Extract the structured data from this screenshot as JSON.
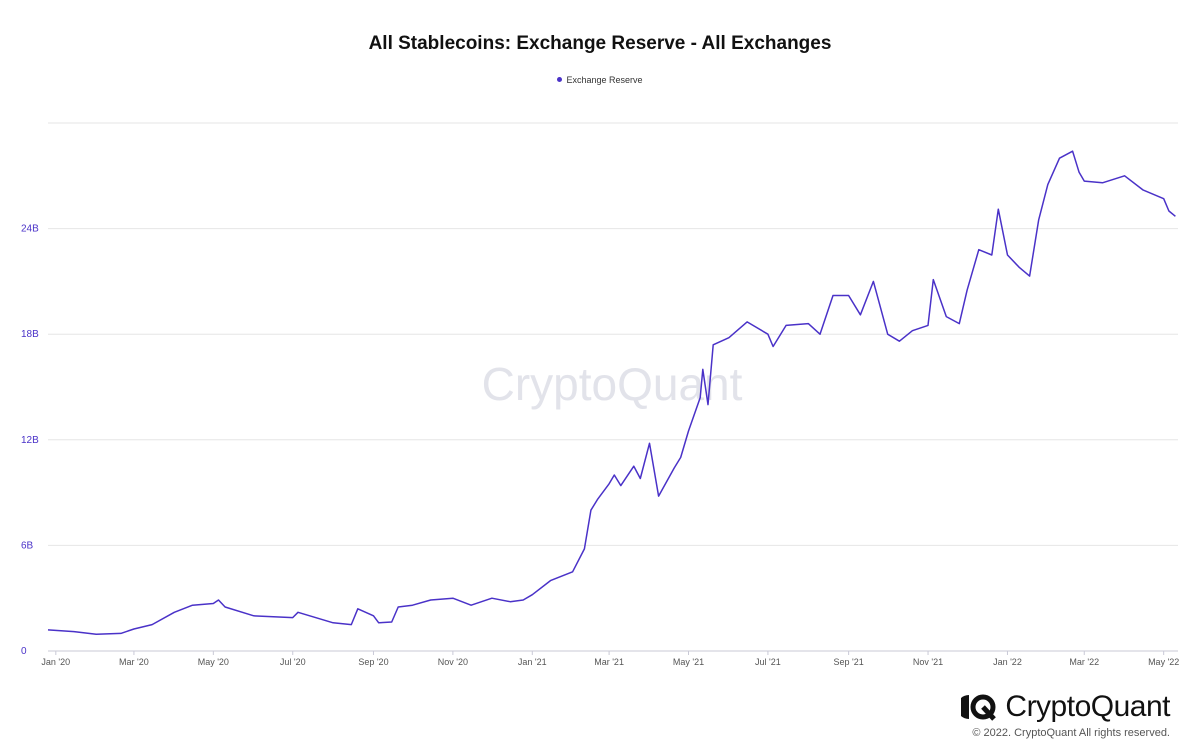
{
  "chart_data": {
    "type": "line",
    "title": "All Stablecoins: Exchange Reserve - All Exchanges",
    "legend_position": "top-center",
    "grid": true,
    "y_unit": "USD",
    "ylim": [
      0,
      30000000000
    ],
    "y_ticks": [
      {
        "value": 0,
        "label": "0"
      },
      {
        "value": 6000000000,
        "label": "6B"
      },
      {
        "value": 12000000000,
        "label": "12B"
      },
      {
        "value": 18000000000,
        "label": "18B"
      },
      {
        "value": 24000000000,
        "label": "24B"
      }
    ],
    "xlim": [
      "2019-12-26",
      "2022-05-12"
    ],
    "x_ticks": [
      {
        "date": "2020-01-01",
        "label": "Jan '20"
      },
      {
        "date": "2020-03-01",
        "label": "Mar '20"
      },
      {
        "date": "2020-05-01",
        "label": "May '20"
      },
      {
        "date": "2020-07-01",
        "label": "Jul '20"
      },
      {
        "date": "2020-09-01",
        "label": "Sep '20"
      },
      {
        "date": "2020-11-01",
        "label": "Nov '20"
      },
      {
        "date": "2021-01-01",
        "label": "Jan '21"
      },
      {
        "date": "2021-03-01",
        "label": "Mar '21"
      },
      {
        "date": "2021-05-01",
        "label": "May '21"
      },
      {
        "date": "2021-07-01",
        "label": "Jul '21"
      },
      {
        "date": "2021-09-01",
        "label": "Sep '21"
      },
      {
        "date": "2021-11-01",
        "label": "Nov '21"
      },
      {
        "date": "2022-01-01",
        "label": "Jan '22"
      },
      {
        "date": "2022-03-01",
        "label": "Mar '22"
      },
      {
        "date": "2022-05-01",
        "label": "May '22"
      }
    ],
    "series": [
      {
        "name": "Exchange Reserve",
        "color": "#4a32c8",
        "points": [
          [
            "2019-12-26",
            1200000000
          ],
          [
            "2020-01-15",
            1100000000
          ],
          [
            "2020-02-01",
            950000000
          ],
          [
            "2020-02-20",
            1000000000
          ],
          [
            "2020-03-01",
            1250000000
          ],
          [
            "2020-03-15",
            1500000000
          ],
          [
            "2020-04-01",
            2200000000
          ],
          [
            "2020-04-15",
            2600000000
          ],
          [
            "2020-05-01",
            2700000000
          ],
          [
            "2020-05-05",
            2900000000
          ],
          [
            "2020-05-10",
            2500000000
          ],
          [
            "2020-06-01",
            2000000000
          ],
          [
            "2020-07-01",
            1900000000
          ],
          [
            "2020-07-05",
            2200000000
          ],
          [
            "2020-08-01",
            1600000000
          ],
          [
            "2020-08-15",
            1500000000
          ],
          [
            "2020-08-20",
            2400000000
          ],
          [
            "2020-09-01",
            2000000000
          ],
          [
            "2020-09-05",
            1600000000
          ],
          [
            "2020-09-15",
            1650000000
          ],
          [
            "2020-09-20",
            2500000000
          ],
          [
            "2020-10-01",
            2600000000
          ],
          [
            "2020-10-15",
            2900000000
          ],
          [
            "2020-11-01",
            3000000000
          ],
          [
            "2020-11-15",
            2600000000
          ],
          [
            "2020-12-01",
            3000000000
          ],
          [
            "2020-12-15",
            2800000000
          ],
          [
            "2020-12-25",
            2900000000
          ],
          [
            "2021-01-01",
            3200000000
          ],
          [
            "2021-01-15",
            4000000000
          ],
          [
            "2021-02-01",
            4500000000
          ],
          [
            "2021-02-10",
            5800000000
          ],
          [
            "2021-02-15",
            8000000000
          ],
          [
            "2021-02-20",
            8600000000
          ],
          [
            "2021-03-01",
            9500000000
          ],
          [
            "2021-03-05",
            10000000000
          ],
          [
            "2021-03-10",
            9400000000
          ],
          [
            "2021-03-20",
            10500000000
          ],
          [
            "2021-03-25",
            9800000000
          ],
          [
            "2021-04-01",
            11800000000
          ],
          [
            "2021-04-08",
            8800000000
          ],
          [
            "2021-04-20",
            10400000000
          ],
          [
            "2021-04-25",
            11000000000
          ],
          [
            "2021-05-01",
            12500000000
          ],
          [
            "2021-05-10",
            14400000000
          ],
          [
            "2021-05-12",
            16000000000
          ],
          [
            "2021-05-16",
            14000000000
          ],
          [
            "2021-05-20",
            17400000000
          ],
          [
            "2021-06-01",
            17800000000
          ],
          [
            "2021-06-15",
            18700000000
          ],
          [
            "2021-07-01",
            18000000000
          ],
          [
            "2021-07-05",
            17300000000
          ],
          [
            "2021-07-15",
            18500000000
          ],
          [
            "2021-08-01",
            18600000000
          ],
          [
            "2021-08-10",
            18000000000
          ],
          [
            "2021-08-20",
            20200000000
          ],
          [
            "2021-09-01",
            20200000000
          ],
          [
            "2021-09-10",
            19100000000
          ],
          [
            "2021-09-20",
            21000000000
          ],
          [
            "2021-10-01",
            18000000000
          ],
          [
            "2021-10-10",
            17600000000
          ],
          [
            "2021-10-20",
            18200000000
          ],
          [
            "2021-11-01",
            18500000000
          ],
          [
            "2021-11-05",
            21100000000
          ],
          [
            "2021-11-15",
            19000000000
          ],
          [
            "2021-11-25",
            18600000000
          ],
          [
            "2021-12-01",
            20500000000
          ],
          [
            "2021-12-10",
            22800000000
          ],
          [
            "2021-12-20",
            22500000000
          ],
          [
            "2021-12-25",
            25100000000
          ],
          [
            "2022-01-01",
            22500000000
          ],
          [
            "2022-01-10",
            21800000000
          ],
          [
            "2022-01-18",
            21300000000
          ],
          [
            "2022-01-25",
            24500000000
          ],
          [
            "2022-02-01",
            26500000000
          ],
          [
            "2022-02-10",
            28000000000
          ],
          [
            "2022-02-20",
            28400000000
          ],
          [
            "2022-02-25",
            27200000000
          ],
          [
            "2022-03-01",
            26700000000
          ],
          [
            "2022-03-15",
            26600000000
          ],
          [
            "2022-04-01",
            27000000000
          ],
          [
            "2022-04-15",
            26200000000
          ],
          [
            "2022-05-01",
            25700000000
          ],
          [
            "2022-05-05",
            25000000000
          ],
          [
            "2022-05-10",
            24700000000
          ]
        ]
      }
    ],
    "watermark": "CryptoQuant"
  },
  "brand": {
    "name": "CryptoQuant",
    "logo_icon": "cryptoquant-logo-icon",
    "copyright": "© 2022. CryptoQuant All rights reserved."
  }
}
